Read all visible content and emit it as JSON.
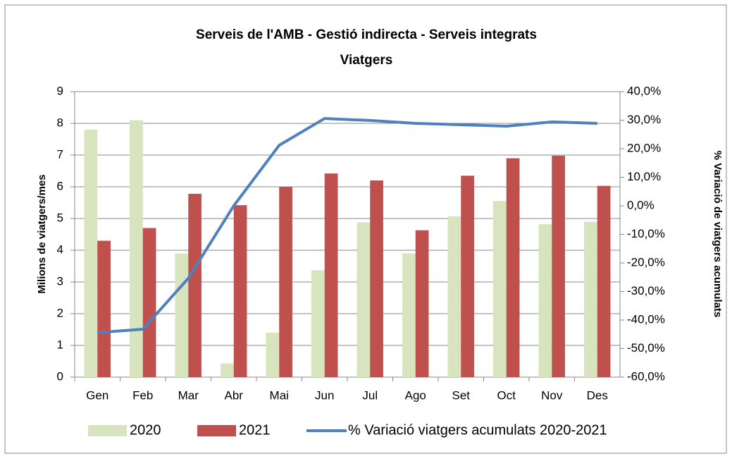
{
  "chart_data": {
    "type": "bar-line",
    "title": "Serveis de l'AMB - Gestió indirecta - Serveis integrats",
    "subtitle": "Viatgers",
    "ylabel": "Milions de viatgers/mes",
    "y2label": "% Variació de viatgers acumulats",
    "categories": [
      "Gen",
      "Feb",
      "Mar",
      "Abr",
      "Mai",
      "Jun",
      "Jul",
      "Ago",
      "Set",
      "Oct",
      "Nov",
      "Des"
    ],
    "series": [
      {
        "name": "2020",
        "color": "#d7e4bd",
        "type": "bar",
        "values": [
          7.8,
          8.1,
          3.9,
          0.43,
          1.4,
          3.37,
          4.88,
          3.9,
          5.07,
          5.55,
          4.82,
          4.9
        ]
      },
      {
        "name": "2021",
        "color": "#c0504d",
        "type": "bar",
        "values": [
          4.3,
          4.7,
          5.78,
          5.42,
          6.0,
          6.42,
          6.2,
          4.63,
          6.35,
          6.9,
          6.98,
          6.03
        ]
      },
      {
        "name": "% Variació viatgers acumulats 2020-2021",
        "color": "#4f81bd",
        "type": "line",
        "axis": "y2",
        "values": [
          -44.4,
          -43.2,
          -25.4,
          0,
          21.2,
          30.6,
          29.9,
          28.9,
          28.4,
          27.9,
          29.4,
          28.9
        ]
      }
    ],
    "ylim": [
      0,
      9
    ],
    "yticks": [
      0,
      1,
      2,
      3,
      4,
      5,
      6,
      7,
      8,
      9
    ],
    "y2lim": [
      -60,
      40
    ],
    "y2ticks": [
      {
        "value": -60,
        "label": "-60,0%"
      },
      {
        "value": -50,
        "label": "-50,0%"
      },
      {
        "value": -40,
        "label": "-40,0%"
      },
      {
        "value": -30,
        "label": "-30,0%"
      },
      {
        "value": -20,
        "label": "-20,0%"
      },
      {
        "value": -10,
        "label": "-10,0%"
      },
      {
        "value": 0,
        "label": "0,0%"
      },
      {
        "value": 10,
        "label": "10,0%"
      },
      {
        "value": 20,
        "label": "20,0%"
      },
      {
        "value": 30,
        "label": "30,0%"
      },
      {
        "value": 40,
        "label": "40,0%"
      }
    ],
    "grid": true,
    "legend": "bottom"
  }
}
